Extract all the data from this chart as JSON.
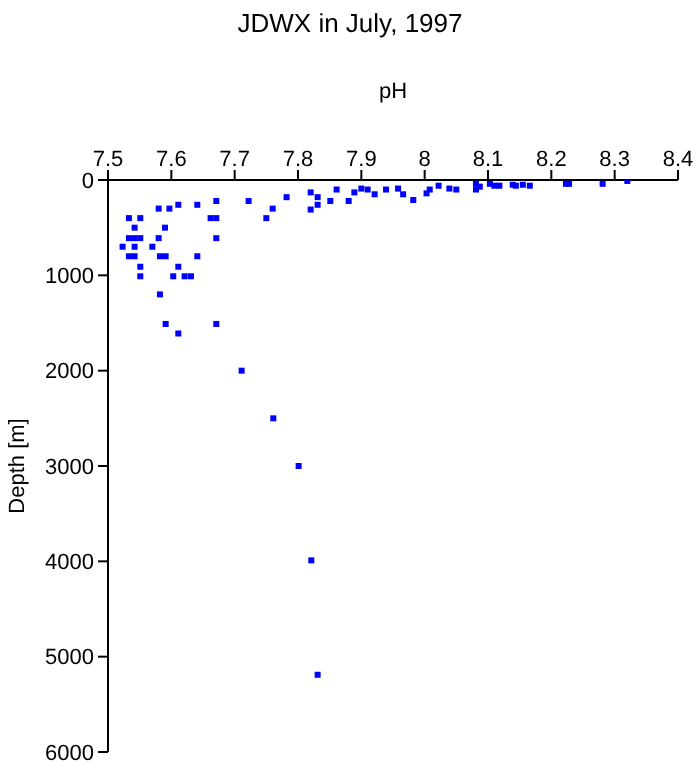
{
  "chart_data": {
    "type": "scatter",
    "title": "JDWX in July, 1997",
    "xlabel": "pH",
    "ylabel": "Depth [m]",
    "xlim": [
      7.5,
      8.4
    ],
    "xticks": [
      7.5,
      7.6,
      7.7,
      7.8,
      7.9,
      8,
      8.1,
      8.2,
      8.3,
      8.4
    ],
    "ylim": [
      6000,
      0
    ],
    "yticks": [
      0,
      1000,
      2000,
      3000,
      4000,
      5000,
      6000
    ],
    "grid": false,
    "marker": "square",
    "series": [
      {
        "color": "#0000ff",
        "x": [
          7.533,
          7.551,
          7.542,
          7.533,
          7.542,
          7.551,
          7.523,
          7.542,
          7.533,
          7.542,
          7.551,
          7.551,
          7.57,
          7.58,
          7.58,
          7.597,
          7.611,
          7.59,
          7.582,
          7.591,
          7.611,
          7.603,
          7.621,
          7.631,
          7.641,
          7.641,
          7.671,
          7.662,
          7.671,
          7.671,
          7.582,
          7.591,
          7.611,
          7.671,
          7.722,
          7.75,
          7.76,
          7.782,
          7.82,
          7.831,
          7.82,
          7.831,
          7.851,
          7.861,
          7.88,
          7.889,
          7.9,
          7.91,
          7.921,
          7.939,
          7.958,
          7.966,
          7.982,
          8.003,
          8.008,
          8.022,
          8.039,
          8.05,
          8.081,
          8.081,
          8.087,
          8.103,
          8.11,
          8.118,
          8.139,
          8.144,
          8.155,
          8.166,
          8.223,
          8.228,
          8.281,
          8.32,
          7.711,
          7.761,
          7.801,
          7.821,
          7.831
        ],
        "values": [
          400,
          400,
          500,
          610,
          610,
          610,
          700,
          700,
          800,
          800,
          910,
          1010,
          700,
          610,
          300,
          300,
          260,
          500,
          800,
          800,
          910,
          1010,
          1010,
          1010,
          800,
          260,
          220,
          400,
          400,
          610,
          1200,
          1510,
          1610,
          1510,
          220,
          400,
          300,
          180,
          130,
          180,
          310,
          260,
          220,
          100,
          220,
          130,
          90,
          100,
          150,
          100,
          90,
          150,
          210,
          140,
          100,
          60,
          90,
          100,
          40,
          100,
          70,
          40,
          60,
          60,
          50,
          60,
          50,
          60,
          40,
          40,
          40,
          10,
          2000,
          2500,
          3000,
          3990,
          5190
        ]
      }
    ]
  }
}
